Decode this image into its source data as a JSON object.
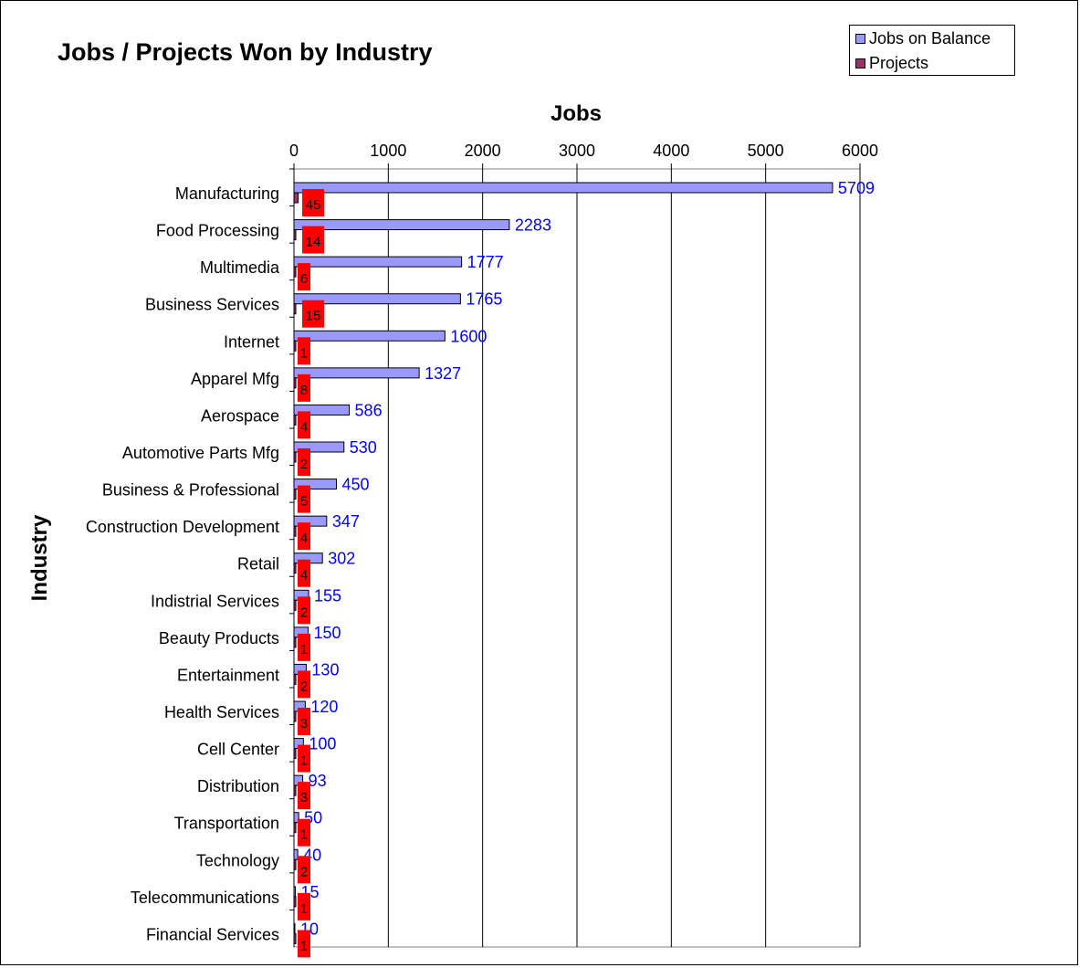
{
  "chart_data": {
    "type": "bar",
    "orientation": "horizontal",
    "title": "Jobs / Projects Won by Industry",
    "xlabel": "Jobs",
    "ylabel": "Industry",
    "xlim": [
      0,
      6000
    ],
    "xticks": [
      "0",
      "1000",
      "2000",
      "3000",
      "4000",
      "5000",
      "6000"
    ],
    "x_axis_position": "top",
    "grid": "vertical",
    "legend_position": "top-right",
    "categories": [
      "Manufacturing",
      "Food Processing",
      "Multimedia",
      "Business Services",
      "Internet",
      "Apparel Mfg",
      "Aerospace",
      "Automotive Parts Mfg",
      "Business & Professional",
      "Construction Development",
      "Retail",
      "Indistrial Services",
      "Beauty Products",
      "Entertainment",
      "Health Services",
      "Cell Center",
      "Distribution",
      "Transportation",
      "Technology",
      "Telecommunications",
      "Financial Services"
    ],
    "series": [
      {
        "name": "Jobs on Balance",
        "color": "#9999ff",
        "label_color": "#0000ff",
        "values": [
          5709,
          2283,
          1777,
          1765,
          1600,
          1327,
          586,
          530,
          450,
          347,
          302,
          155,
          150,
          130,
          120,
          100,
          93,
          50,
          40,
          15,
          10
        ],
        "labels": [
          "5709",
          "2283",
          "1777",
          "1765",
          "1600",
          "1327",
          "586",
          "530",
          "450",
          "347",
          "302",
          "155",
          "150",
          "130",
          "120",
          "100",
          "93",
          "50",
          "40",
          "15",
          "10"
        ]
      },
      {
        "name": "Projects",
        "color": "#993366",
        "label_background": "#ff0000",
        "label_color": "#000000",
        "values": [
          45,
          14,
          6,
          15,
          1,
          8,
          4,
          2,
          5,
          4,
          4,
          2,
          1,
          2,
          3,
          1,
          3,
          1,
          2,
          1,
          1
        ],
        "labels": [
          "45",
          "14",
          "6",
          "15",
          "1",
          "8",
          "4",
          "2",
          "5",
          "4",
          "4",
          "2",
          "1",
          "2",
          "3",
          "1",
          "3",
          "1",
          "2",
          "1",
          "1"
        ]
      }
    ]
  }
}
